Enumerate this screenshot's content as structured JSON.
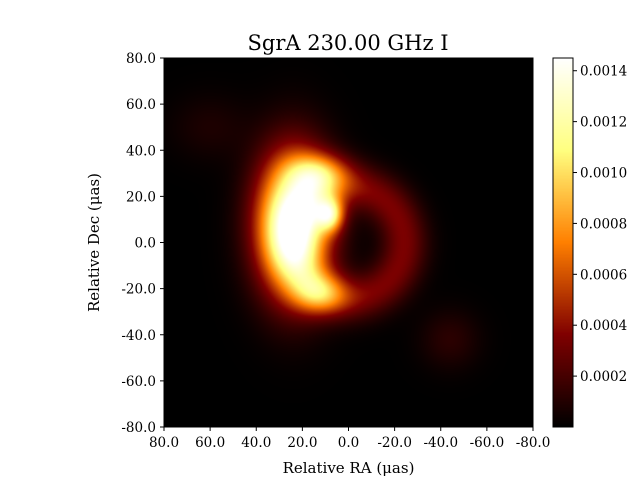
{
  "chart_data": {
    "type": "heatmap",
    "title": "SgrA 230.00 GHz I",
    "xlabel": "Relative RA (μas)",
    "ylabel": "Relative Dec (μas)",
    "xlim": [
      80.0,
      -80.0
    ],
    "ylim": [
      -80.0,
      80.0
    ],
    "x_ticks": [
      "80.0",
      "60.0",
      "40.0",
      "20.0",
      "0.0",
      "-20.0",
      "-40.0",
      "-60.0",
      "-80.0"
    ],
    "y_ticks": [
      "80.0",
      "60.0",
      "40.0",
      "20.0",
      "0.0",
      "-20.0",
      "-40.0",
      "-60.0",
      "-80.0"
    ],
    "colormap": "afmhot",
    "colorbar": {
      "range": [
        0,
        0.00145
      ],
      "ticks": [
        "0.0002",
        "0.0004",
        "0.0006",
        "0.0008",
        "0.0010",
        "0.0012",
        "0.0014"
      ]
    },
    "features": [
      {
        "kind": "ring",
        "center": [
          0,
          0
        ],
        "radius": 24,
        "width": 7,
        "peak": 0.00035
      },
      {
        "kind": "crescent",
        "center": [
          24,
          8
        ],
        "sigma_x": 11,
        "sigma_y": 21,
        "peak": 0.00145
      },
      {
        "kind": "knot",
        "center": [
          8,
          12
        ],
        "sigma_x": 4,
        "sigma_y": 5,
        "peak": 0.0008
      },
      {
        "kind": "knot",
        "center": [
          13,
          30
        ],
        "sigma_x": 9,
        "sigma_y": 6,
        "peak": 0.0006
      },
      {
        "kind": "knot",
        "center": [
          12,
          -22
        ],
        "sigma_x": 8,
        "sigma_y": 6,
        "peak": 0.0005
      },
      {
        "kind": "blob",
        "center": [
          -44,
          -42
        ],
        "sigma_x": 9,
        "sigma_y": 9,
        "peak": 0.00012
      },
      {
        "kind": "blob",
        "center": [
          60,
          50
        ],
        "sigma_x": 12,
        "sigma_y": 10,
        "peak": 8e-05
      }
    ]
  }
}
